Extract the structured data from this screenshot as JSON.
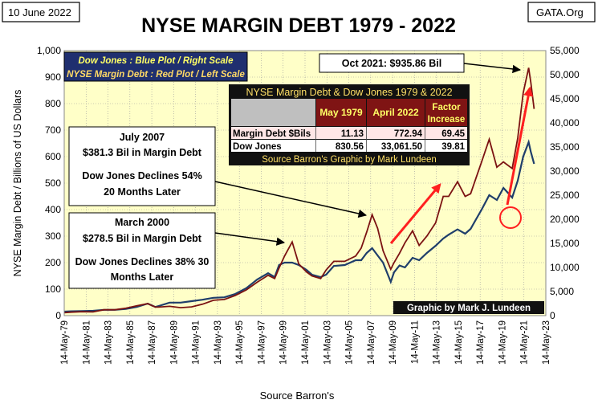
{
  "header": {
    "date": "10 June 2022",
    "title": "NYSE MARGIN DEBT 1979 - 2022",
    "source": "GATA.Org"
  },
  "colors": {
    "plot_bg": "#ffffc8",
    "margin_series": "#7b1212",
    "dow_series": "#1f3e6b",
    "arrow": "#ff1f1f",
    "legend_bg": "#1f2f6f",
    "legend_text_1": "#ffff66",
    "legend_text_2": "#ffd966",
    "table_header_bg": "#7f1414",
    "table_grey": "#bfbfbf",
    "table_row_bg": "#ffe6e6"
  },
  "legend": {
    "line1": "Dow Jones : Blue Plot / Right Scale",
    "line2": "NYSE Margin Debt : Red Plot / Left Scale"
  },
  "table": {
    "title": "NYSE Margin Debt & Dow Jones 1979 & 2022",
    "col1": "May 1979",
    "col2": "April 2022",
    "col3a": "Factor",
    "col3b": "Increase",
    "rows": [
      {
        "label": "Margin Debt $Bils",
        "v1": "11.13",
        "v2": "772.94",
        "v3": "69.45"
      },
      {
        "label": "Dow Jones",
        "v1": "830.56",
        "v2": "33,061.50",
        "v3": "39.81"
      }
    ],
    "source": "Source Barron's Graphic by Mark Lundeen"
  },
  "annotations": {
    "peak": "Oct 2021:  $935.86  Bil",
    "jul2007": {
      "title": "July 2007",
      "amount": "$381.3  Bil in Margin Debt",
      "decl1": "Dow Jones Declines 54%",
      "decl2": "20 Months Later"
    },
    "mar2000": {
      "title": "March  2000",
      "amount": "$278.5  Bil in Margin Debt",
      "decl1": "Dow Jones Declines 38% 30",
      "decl2": "Months Later"
    },
    "credit": "Graphic by Mark J. Lundeen"
  },
  "chart_data": {
    "type": "line",
    "title": "NYSE MARGIN DEBT 1979 - 2022",
    "xlabel": "Source Barron's",
    "ylabel": "NYSE Margin Debt  /  Billions of  US Dollars",
    "ylabel_right": "",
    "xlim": [
      1979.37,
      2023.37
    ],
    "ylim": [
      0,
      1000
    ],
    "ylim_right": [
      0,
      55000
    ],
    "x_ticks": [
      1979.37,
      1981.37,
      1983.37,
      1985.37,
      1987.37,
      1989.37,
      1991.37,
      1993.37,
      1995.37,
      1997.37,
      1999.37,
      2001.37,
      2003.37,
      2005.37,
      2007.37,
      2009.37,
      2011.37,
      2013.37,
      2015.37,
      2017.37,
      2019.37,
      2021.37,
      2023.37
    ],
    "x_tick_labels": [
      "14-May-79",
      "14-May-81",
      "14-May-83",
      "14-May-85",
      "14-May-87",
      "14-May-89",
      "14-May-91",
      "14-May-93",
      "14-May-95",
      "14-May-97",
      "14-May-99",
      "14-May-01",
      "14-May-03",
      "14-May-05",
      "14-May-07",
      "14-May-09",
      "14-May-11",
      "14-May-13",
      "14-May-15",
      "14-May-17",
      "14-May-19",
      "14-May-21",
      "14-May-23"
    ],
    "y_ticks": [
      0,
      100,
      200,
      300,
      400,
      500,
      600,
      700,
      800,
      900,
      1000
    ],
    "y_tick_labels": [
      "0",
      "100",
      "200",
      "300",
      "400",
      "500",
      "600",
      "700",
      "800",
      "900",
      "1,000"
    ],
    "y_ticks_right": [
      0,
      5000,
      10000,
      15000,
      20000,
      25000,
      30000,
      35000,
      40000,
      45000,
      50000,
      55000
    ],
    "y_tick_labels_right": [
      "0",
      "5,000",
      "10,000",
      "15,000",
      "20,000",
      "25,000",
      "30,000",
      "35,000",
      "40,000",
      "45,000",
      "50,000",
      "55,000"
    ],
    "series": [
      {
        "name": "NYSE Margin Debt",
        "axis": "left",
        "x": [
          1979.37,
          1980,
          1981,
          1982,
          1983,
          1984,
          1985,
          1986,
          1987,
          1987.7,
          1988,
          1989,
          1990,
          1991,
          1992,
          1993,
          1994,
          1995,
          1996,
          1997,
          1998,
          1998.6,
          1999,
          1999.5,
          2000.2,
          2000.8,
          2001.5,
          2002,
          2002.8,
          2003.3,
          2004,
          2005,
          2006,
          2006.5,
          2007,
          2007.5,
          2008,
          2008.5,
          2009.2,
          2009.5,
          2010,
          2010.5,
          2011.2,
          2011.8,
          2012.5,
          2013.3,
          2014,
          2014.5,
          2015.3,
          2016,
          2016.5,
          2017,
          2017.5,
          2018.2,
          2018.9,
          2019.5,
          2020.3,
          2020.8,
          2021.3,
          2021.8,
          2022.0,
          2022.3
        ],
        "values": [
          11,
          13,
          15,
          14,
          22,
          22,
          28,
          37,
          45,
          32,
          32,
          35,
          30,
          33,
          43,
          58,
          61,
          76,
          97,
          126,
          152,
          140,
          180,
          225,
          278,
          195,
          165,
          150,
          140,
          172,
          205,
          205,
          225,
          255,
          315,
          381,
          330,
          245,
          175,
          200,
          235,
          275,
          320,
          265,
          300,
          350,
          450,
          450,
          505,
          450,
          460,
          520,
          580,
          665,
          560,
          580,
          555,
          670,
          840,
          935,
          880,
          780
        ]
      },
      {
        "name": "Dow Jones",
        "axis": "right",
        "x": [
          1979.37,
          1980,
          1981,
          1982,
          1983,
          1984,
          1985,
          1986,
          1987,
          1987.7,
          1988,
          1989,
          1990,
          1991,
          1992,
          1993,
          1994,
          1995,
          1996,
          1997,
          1998,
          1998.6,
          1999,
          1999.5,
          2000.2,
          2000.8,
          2001.5,
          2002,
          2002.8,
          2003.3,
          2004,
          2005,
          2006,
          2006.5,
          2007,
          2007.5,
          2008,
          2008.5,
          2009.2,
          2009.5,
          2010,
          2010.5,
          2011.2,
          2011.8,
          2012.5,
          2013.3,
          2014,
          2014.5,
          2015.3,
          2016,
          2016.5,
          2017,
          2017.5,
          2018.2,
          2018.9,
          2019.5,
          2020.3,
          2020.8,
          2021.3,
          2021.8,
          2022.0,
          2022.3
        ],
        "values": [
          830,
          900,
          950,
          1000,
          1200,
          1200,
          1400,
          1800,
          2500,
          1800,
          2000,
          2700,
          2700,
          3000,
          3300,
          3700,
          3800,
          4500,
          5700,
          7500,
          8800,
          8000,
          10500,
          11000,
          11000,
          10500,
          9500,
          8500,
          8000,
          8500,
          10300,
          10500,
          11500,
          11500,
          13000,
          14000,
          12500,
          11000,
          7000,
          9000,
          10400,
          10000,
          12000,
          11500,
          13000,
          14500,
          16000,
          16800,
          17900,
          17000,
          18000,
          20000,
          22000,
          25000,
          24000,
          26500,
          24500,
          28000,
          33000,
          36000,
          34000,
          31500
        ]
      }
    ]
  }
}
